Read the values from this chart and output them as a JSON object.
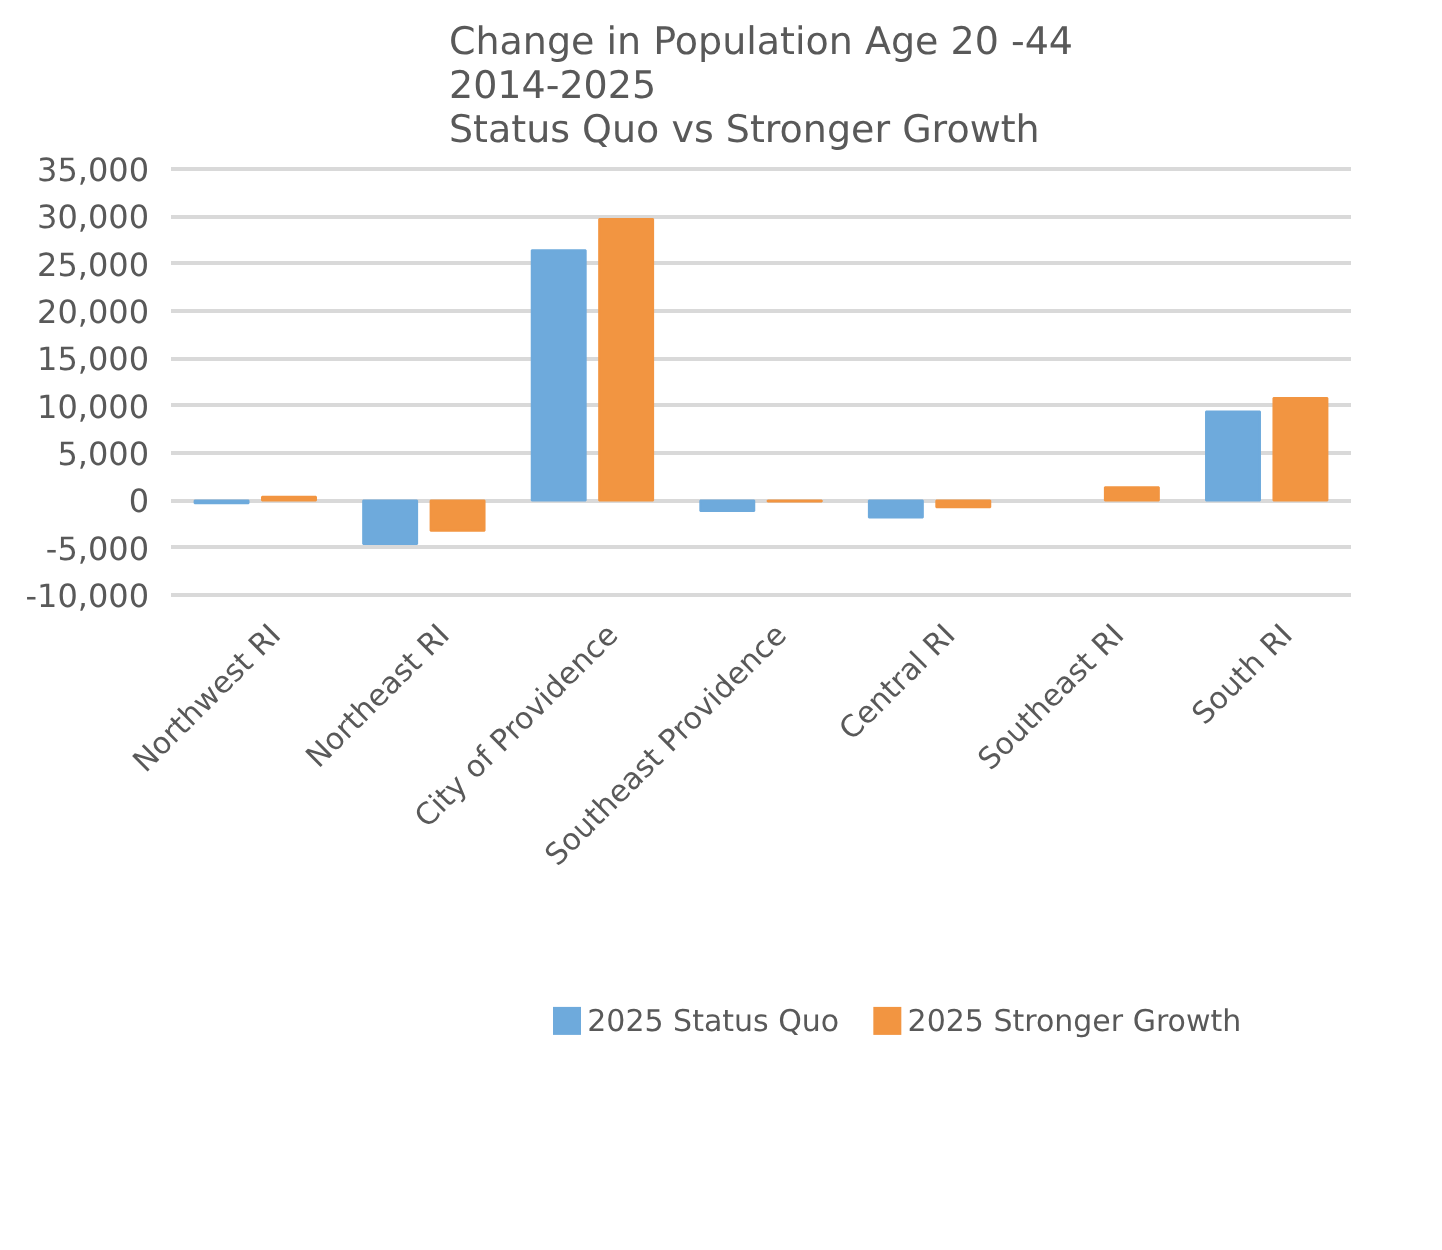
{
  "chart_data": {
    "type": "bar",
    "title": "Change in Population Age 20 -44\n2014-2025\nStatus Quo vs Stronger Growth",
    "categories": [
      "Northwest RI",
      "Northeast RI",
      "City of Providence",
      "Southeast Providence",
      "Central RI",
      "Southeast RI",
      "South RI"
    ],
    "series": [
      {
        "name": "2025 Status Quo",
        "color": "#6eaadc",
        "values": [
          -300,
          -4600,
          26400,
          -1100,
          -1800,
          null,
          9400
        ]
      },
      {
        "name": "2025 Stronger Growth",
        "color": "#f29541",
        "values": [
          400,
          -3200,
          29700,
          -100,
          -700,
          1400,
          10800
        ]
      }
    ],
    "ylim": [
      -10000,
      35000
    ],
    "yticks": [
      {
        "value": -10000,
        "label": "-10,000"
      },
      {
        "value": -5000,
        "label": "-5,000"
      },
      0,
      {
        "value": 5000,
        "label": "5,000"
      },
      {
        "value": 10000,
        "label": "10,000"
      },
      {
        "value": 15000,
        "label": "15,000"
      },
      {
        "value": 20000,
        "label": "20,000"
      },
      {
        "value": 25000,
        "label": "25,000"
      },
      {
        "value": 30000,
        "label": "30,000"
      },
      {
        "value": 35000,
        "label": "35,000"
      }
    ],
    "grid": "y",
    "legend": "bottom"
  }
}
